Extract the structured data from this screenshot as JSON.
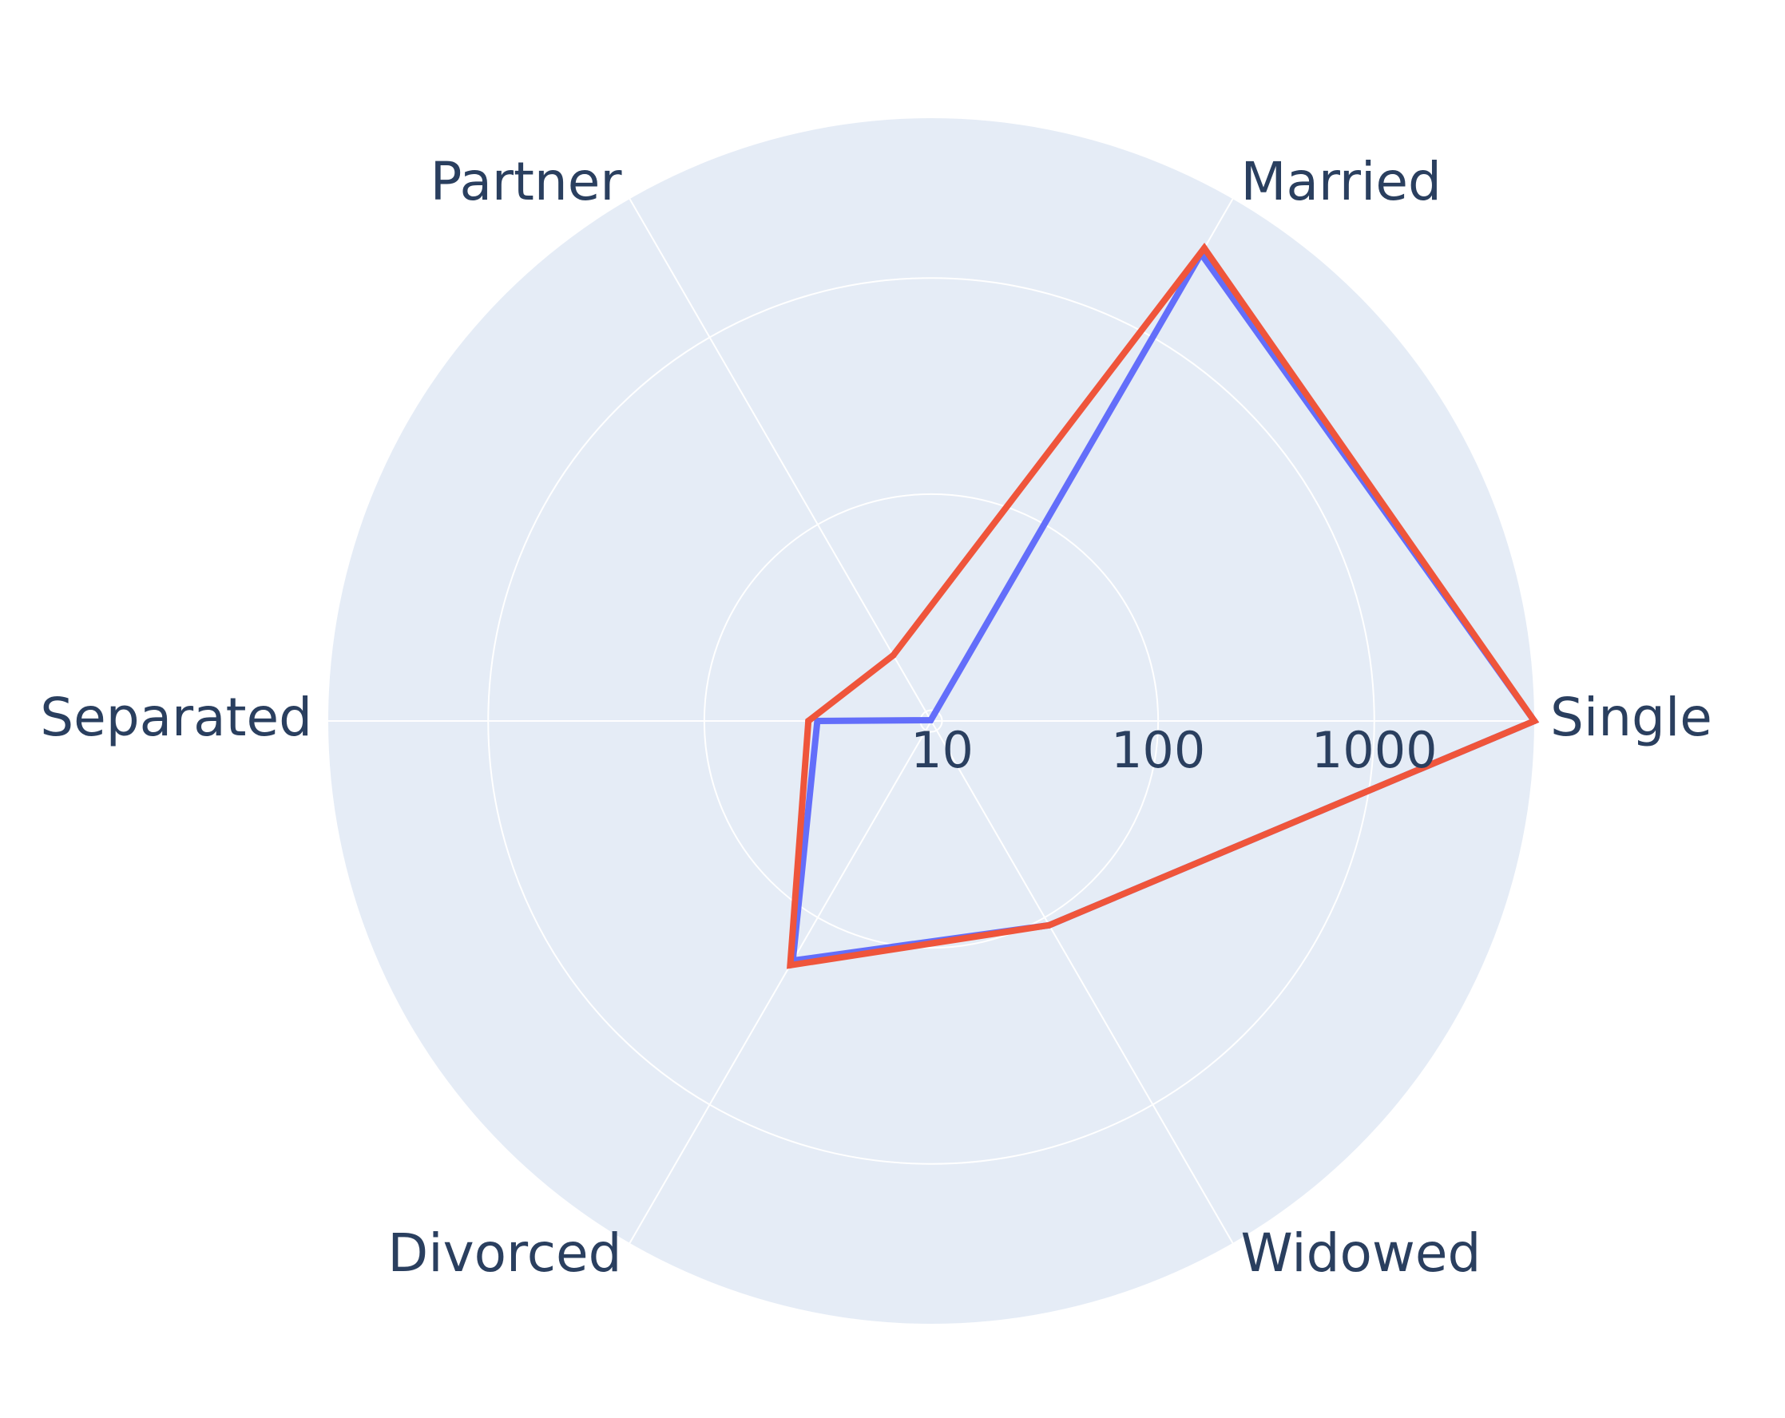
{
  "chart_data": {
    "type": "radar",
    "title": "",
    "categories": [
      "Single",
      "Married",
      "Partner",
      "Separated",
      "Divorced",
      "Widowed"
    ],
    "radial_axis": {
      "type": "log",
      "range": [
        0.95,
        3.74
      ],
      "tick_values": [
        10,
        100,
        1000
      ],
      "tick_labels": [
        "10",
        "100",
        "1000"
      ]
    },
    "angular_axis": {
      "rotation_deg": 0,
      "direction": "counterclockwise"
    },
    "grid": true,
    "legend": false,
    "series": [
      {
        "color": "#636efa",
        "values": [
          5500,
          2800,
          9,
          30,
          170,
          110
        ]
      },
      {
        "color": "#ef553b",
        "values": [
          5500,
          3000,
          20,
          33,
          180,
          110
        ]
      }
    ],
    "colors": {
      "polar_background": "#e5ecf6",
      "grid": "#ffffff",
      "text": "#2a3f5f"
    }
  }
}
